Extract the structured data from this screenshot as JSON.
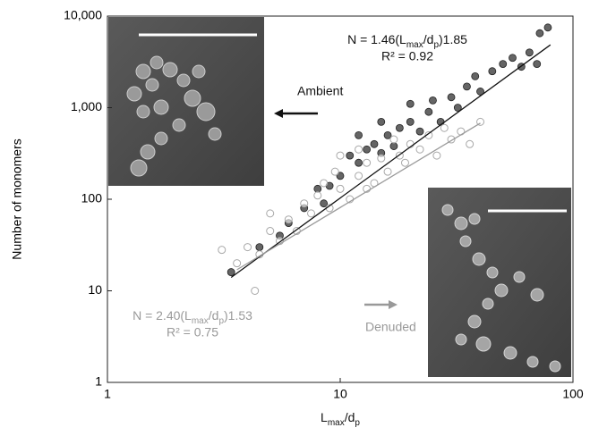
{
  "chart_data": {
    "type": "scatter",
    "x_label_parts": [
      "L",
      "max",
      "/d",
      "p"
    ],
    "y_label": "Number of monomers",
    "xlim": [
      1,
      100
    ],
    "xticks": [
      1,
      10,
      100
    ],
    "ylim": [
      1,
      10000
    ],
    "yticks": [
      1,
      10,
      100,
      {
        "value": 1000,
        "label": "1,000"
      },
      {
        "value": 10000,
        "label": "10,000"
      }
    ],
    "log_x": true,
    "log_y": true,
    "series": [
      {
        "name": "Ambient",
        "color": "#4a4a4a",
        "x": [
          3.4,
          4.5,
          5.5,
          6,
          7,
          8,
          8.5,
          9,
          10,
          11,
          12,
          13,
          14,
          15,
          16,
          17,
          18,
          20,
          22,
          24,
          25,
          27,
          30,
          32,
          35,
          38,
          40,
          45,
          50,
          55,
          60,
          65,
          70,
          78,
          72,
          20,
          12,
          15
        ],
        "values": [
          16,
          30,
          40,
          55,
          80,
          130,
          90,
          140,
          180,
          300,
          250,
          350,
          400,
          320,
          500,
          380,
          600,
          700,
          550,
          900,
          1200,
          700,
          1300,
          1000,
          1700,
          2200,
          1500,
          2500,
          3000,
          3500,
          2800,
          4000,
          3000,
          7500,
          6500,
          1100,
          500,
          700
        ]
      },
      {
        "name": "Denuded",
        "color": "#a8a8a8",
        "x": [
          4.3,
          3.6,
          4,
          4.5,
          5,
          5.5,
          6,
          6.5,
          7,
          7.5,
          8,
          8.5,
          9,
          9.5,
          10,
          10,
          11,
          12,
          12,
          13,
          14,
          15,
          16,
          17,
          18,
          19,
          20,
          22,
          24,
          26,
          28,
          30,
          33,
          36,
          40,
          3.1,
          5,
          13
        ],
        "values": [
          10,
          20,
          30,
          25,
          45,
          35,
          60,
          45,
          90,
          70,
          110,
          150,
          80,
          200,
          130,
          300,
          100,
          180,
          350,
          250,
          150,
          280,
          200,
          450,
          300,
          250,
          400,
          350,
          500,
          300,
          600,
          450,
          550,
          400,
          700,
          28,
          70,
          130
        ]
      }
    ],
    "fits": [
      {
        "color": "#111111",
        "x": [
          3.4,
          80
        ],
        "values": [
          14,
          4850
        ],
        "equation_parts": [
          "N = 1.46(L",
          "max",
          "/d",
          "p",
          ")1.85"
        ],
        "r2": "R² = 0.92"
      },
      {
        "color": "#9a9a9a",
        "x": [
          3.6,
          40
        ],
        "values": [
          17,
          678
        ],
        "equation_parts": [
          "N = 2.40(L",
          "max",
          "/d",
          "p",
          ")1.53"
        ],
        "r2": "R² = 0.75"
      }
    ]
  }
}
